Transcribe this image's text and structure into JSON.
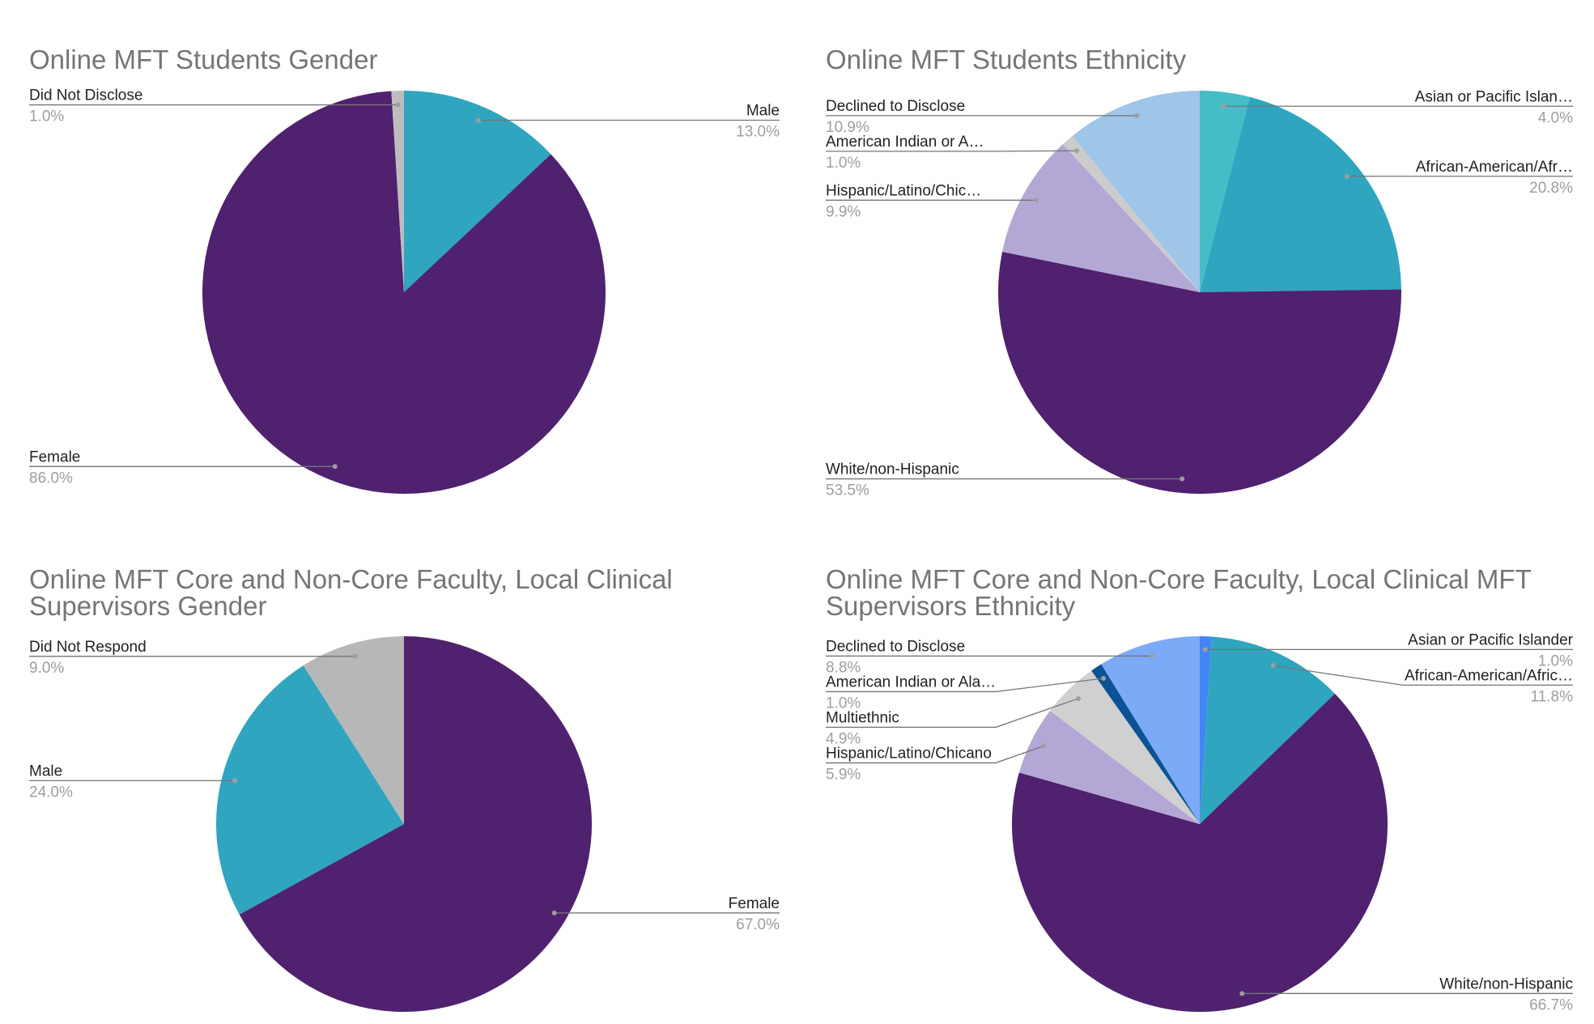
{
  "chart_data": [
    {
      "type": "pie",
      "title": "Online MFT Students Gender",
      "categories": [
        "Male",
        "Female",
        "Did Not Disclose"
      ],
      "values": [
        13.0,
        86.0,
        1.0
      ],
      "value_labels": [
        "13.0%",
        "86.0%",
        "1.0%"
      ],
      "colors": [
        "#30a5bf",
        "#4f216e",
        "#bdbdbd"
      ]
    },
    {
      "type": "pie",
      "title": "Online MFT Students Ethnicity",
      "categories": [
        "Asian or Pacific Islan…",
        "African-American/Afr…",
        "White/non-Hispanic",
        "Hispanic/Latino/Chic…",
        "American Indian or A…",
        "Declined to Disclose"
      ],
      "values": [
        4.0,
        20.8,
        53.5,
        9.9,
        1.0,
        10.9
      ],
      "value_labels": [
        "4.0%",
        "20.8%",
        "53.5%",
        "9.9%",
        "1.0%",
        "10.9%"
      ],
      "colors": [
        "#46bdc6",
        "#30a5bf",
        "#4f216e",
        "#b3a7d6",
        "#cccccc",
        "#9fc5e8"
      ]
    },
    {
      "type": "pie",
      "title": "Online MFT Core and Non-Core Faculty, Local Clinical Supervisors Gender",
      "categories": [
        "Female",
        "Male",
        "Did Not Respond"
      ],
      "values": [
        67.0,
        24.0,
        9.0
      ],
      "value_labels": [
        "67.0%",
        "24.0%",
        "9.0%"
      ],
      "colors": [
        "#4f216e",
        "#30a5bf",
        "#b7b7b7"
      ]
    },
    {
      "type": "pie",
      "title": "Online MFT Core and Non-Core Faculty, Local Clinical MFT Supervisors Ethnicity",
      "categories": [
        "Asian or Pacific Islander",
        "African-American/Afric…",
        "White/non-Hispanic",
        "Hispanic/Latino/Chicano",
        "Multiethnic",
        "American Indian or Ala…",
        "Declined to Disclose"
      ],
      "values": [
        1.0,
        11.8,
        66.7,
        5.9,
        4.9,
        1.0,
        8.8
      ],
      "value_labels": [
        "1.0%",
        "11.8%",
        "66.7%",
        "5.9%",
        "4.9%",
        "1.0%",
        "8.8%"
      ],
      "colors": [
        "#4285f4",
        "#30a5bf",
        "#4f216e",
        "#b3a7d6",
        "#d0d0d0",
        "#0b5394",
        "#7baaf7"
      ]
    }
  ]
}
